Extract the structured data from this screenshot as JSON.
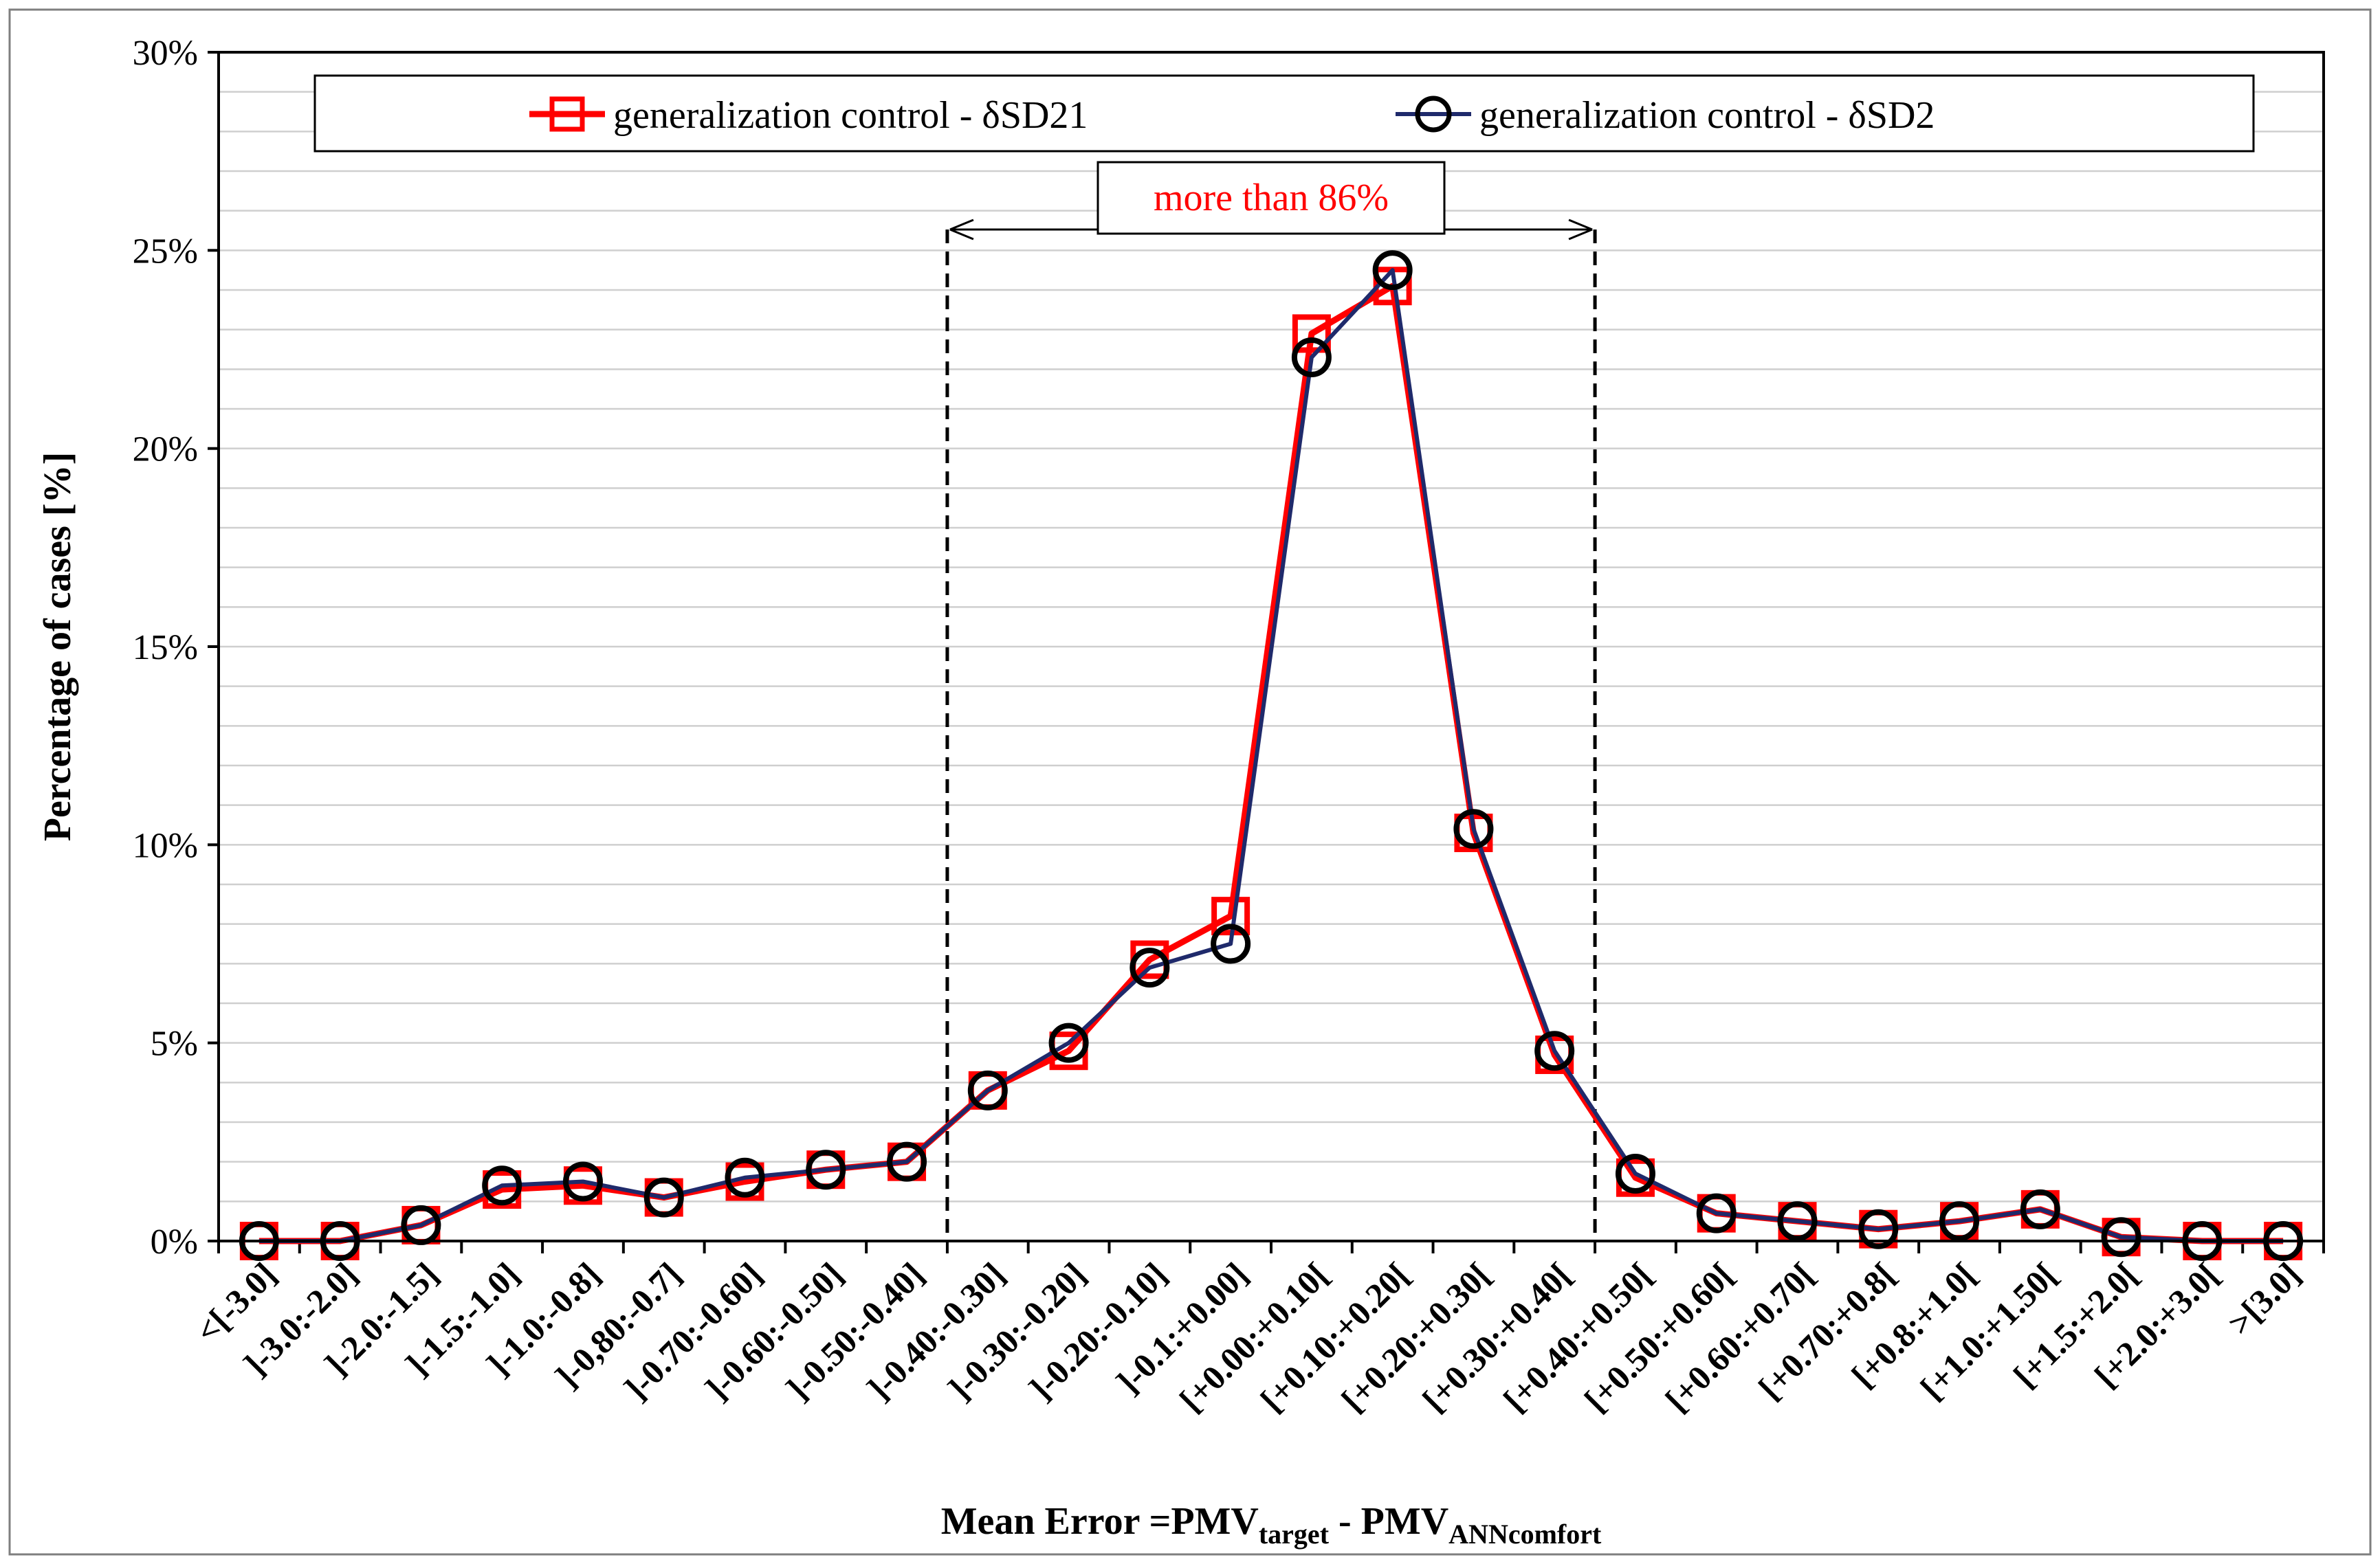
{
  "chart_data": {
    "type": "line",
    "title": "",
    "xlabel_main": "Mean Error =PMV",
    "xlabel_sub1": "target",
    "xlabel_mid": " - PMV",
    "xlabel_sub2": "ANNcomfort",
    "ylabel": "Percentage of cases [%]",
    "ylim": [
      0,
      30
    ],
    "yticks": [
      "0%",
      "5%",
      "10%",
      "15%",
      "20%",
      "25%",
      "30%"
    ],
    "categories": [
      "<[-3.0]",
      "]-3.0:-2.0]",
      "]-2.0:-1.5]",
      "]-1.5:-1.0]",
      "]-1.0:-0.8]",
      "]-0,80:-0.7]",
      "]-0.70:-0.60]",
      "]-0.60:-0.50]",
      "]-0.50:-0.40]",
      "]-0.40:-0.30]",
      "]-0.30:-0.20]",
      "]-0.20:-0.10]",
      "]-0.1:+0.00]",
      "[+0.00:+0.10[",
      "[+0.10:+0.20[",
      "[+0.20:+0.30[",
      "[+0.30:+0.40[",
      "[+0.40:+0.50[",
      "[+0.50:+0.60[",
      "[+0.60:+0.70[",
      "[+0.70:+0.8[",
      "[+0.8:+1.0[",
      "[+1.0:+1.50[",
      "[+1.5:+2.0[",
      "[+2.0:+3.0[",
      ">[3.0]"
    ],
    "series": [
      {
        "name": "generalization control - δSD21",
        "color": "#ff0000",
        "marker": "square",
        "values": [
          0,
          0,
          0.4,
          1.3,
          1.4,
          1.1,
          1.5,
          1.8,
          2.0,
          3.8,
          4.8,
          7.1,
          8.2,
          22.9,
          24.1,
          10.3,
          4.7,
          1.6,
          0.7,
          0.5,
          0.3,
          0.5,
          0.8,
          0.1,
          0,
          0
        ]
      },
      {
        "name": "generalization control - δSD2",
        "color": "#1f2a6b",
        "marker": "circle",
        "values": [
          0,
          0,
          0.4,
          1.4,
          1.5,
          1.1,
          1.6,
          1.8,
          2.0,
          3.8,
          5.0,
          6.9,
          7.5,
          22.3,
          24.5,
          10.4,
          4.8,
          1.7,
          0.7,
          0.5,
          0.3,
          0.5,
          0.8,
          0.1,
          0,
          0
        ]
      }
    ],
    "annotation": {
      "text": "more than 86%",
      "from_category_gap": 8.5,
      "to_category_gap": 16.5
    },
    "legend_position": "top",
    "grid": true
  }
}
